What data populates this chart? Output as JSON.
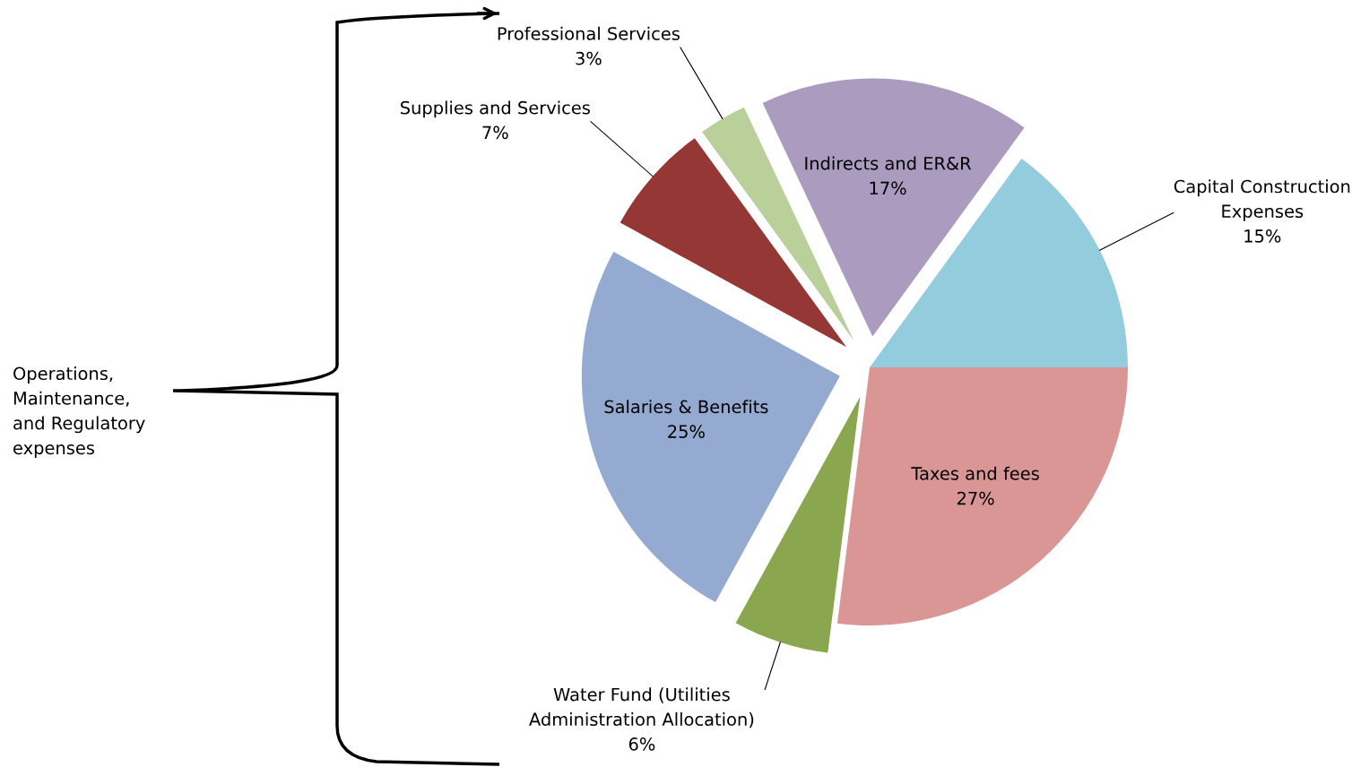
{
  "chart_data": {
    "type": "pie",
    "categories": [
      "Capital Construction\nExpenses",
      "Taxes and fees",
      "Water Fund (Utilities\nAdministration Allocation)",
      "Salaries & Benefits",
      "Supplies and Services",
      "Professional Services",
      "Indirects and ER&R"
    ],
    "values": [
      15,
      27,
      6,
      25,
      7,
      3,
      17
    ],
    "colors": [
      "#93cddd",
      "#d99694",
      "#8aa64e",
      "#95aad1",
      "#953735",
      "#b9d09a",
      "#aa9bbf"
    ],
    "value_labels": [
      "15%",
      "27%",
      "6%",
      "25%",
      "7%",
      "3%",
      "17%"
    ],
    "annotations": [
      "Operations,\nMaintenance,\nand Regulatory\nexpenses"
    ],
    "legend": false
  }
}
